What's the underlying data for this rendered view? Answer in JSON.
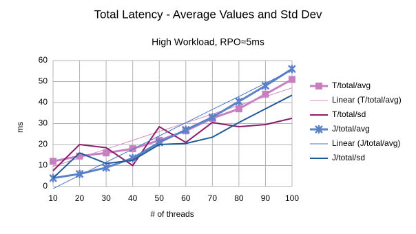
{
  "chart_data": {
    "type": "line",
    "title": "Total Latency - Average Values and Std Dev",
    "subtitle": "High Workload, RPO≈5ms",
    "x_label": "# of threads",
    "y_label": "ms",
    "x": [
      10,
      20,
      30,
      40,
      50,
      60,
      70,
      80,
      90,
      100
    ],
    "xlim": [
      10,
      100
    ],
    "xticks": [
      10,
      20,
      30,
      40,
      50,
      60,
      70,
      80,
      90,
      100
    ],
    "ylim": [
      0,
      60
    ],
    "yticks": [
      0,
      10,
      20,
      30,
      40,
      50,
      60
    ],
    "grid": true,
    "legend": "right",
    "series": [
      {
        "name": "T/total/avg",
        "color": "#c77fc0",
        "marker": "square",
        "width": 3,
        "values": [
          12,
          14.5,
          16,
          18,
          22,
          26.5,
          32.5,
          37,
          44,
          51
        ]
      },
      {
        "name": "Linear (T/total/avg)",
        "color": "#d08ccc",
        "marker": "none",
        "width": 1,
        "values": [
          9.5,
          13.7,
          17.8,
          22,
          26.2,
          30.3,
          34.5,
          38.7,
          42.8,
          47
        ]
      },
      {
        "name": "T/total/sd",
        "color": "#8b1a6b",
        "marker": "none",
        "width": 2,
        "values": [
          7.5,
          20,
          18.5,
          10,
          28.5,
          21,
          30.5,
          28.5,
          29.5,
          32.5
        ]
      },
      {
        "name": "J/total/avg",
        "color": "#5b82c8",
        "marker": "x",
        "width": 3,
        "values": [
          4,
          6,
          9,
          13.5,
          21,
          27,
          33,
          40.5,
          48,
          56
        ]
      },
      {
        "name": "Linear (J/total/avg)",
        "color": "#4a74c0",
        "marker": "none",
        "width": 1,
        "values": [
          -1,
          5.3,
          11.6,
          17.8,
          24.1,
          30.4,
          36.7,
          42.9,
          49.2,
          55.5
        ]
      },
      {
        "name": "J/total/sd",
        "color": "#1f5a96",
        "marker": "none",
        "width": 2,
        "values": [
          4,
          16,
          11,
          12.5,
          20,
          20.5,
          23.5,
          30.5,
          37,
          43.5
        ]
      }
    ]
  }
}
